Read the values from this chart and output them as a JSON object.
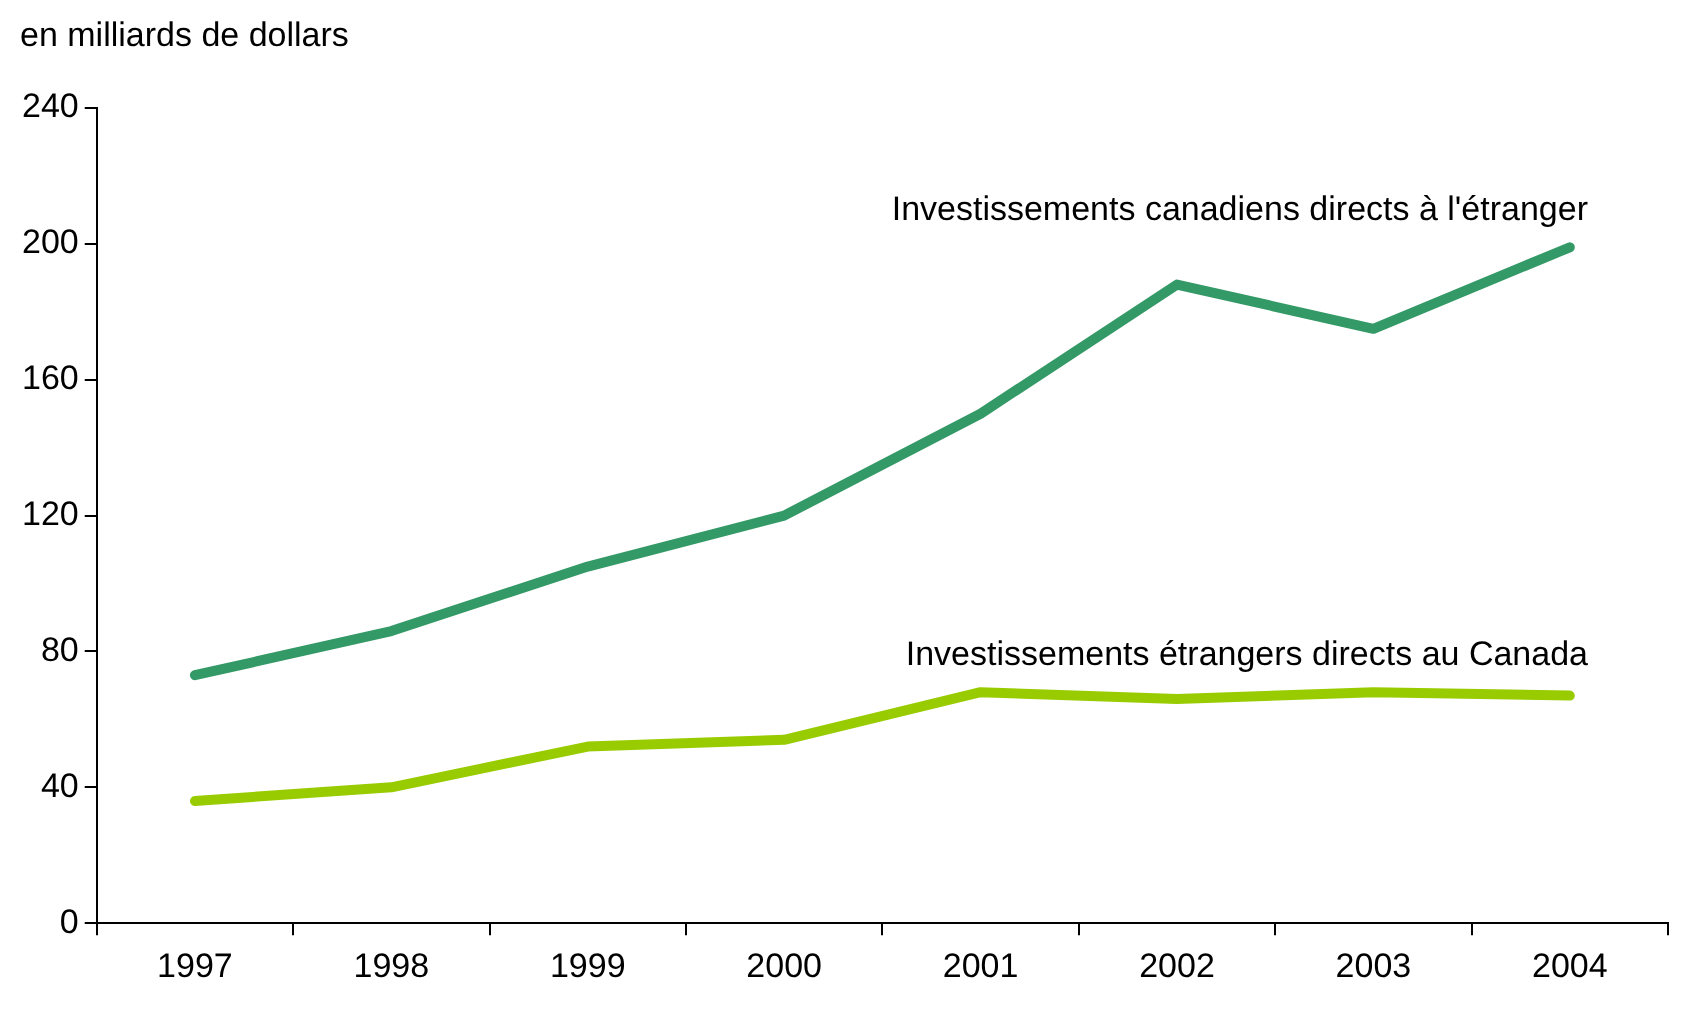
{
  "chart_data": {
    "type": "line",
    "ylabel": "en milliards de dollars",
    "categories": [
      "1997",
      "1998",
      "1999",
      "2000",
      "2001",
      "2002",
      "2003",
      "2004"
    ],
    "series": [
      {
        "name": "Investissements canadiens directs à l'étranger",
        "color": "#339966",
        "values": [
          73,
          86,
          105,
          120,
          150,
          188,
          175,
          199
        ]
      },
      {
        "name": "Investissements étrangers directs au Canada",
        "color": "#99cc00",
        "values": [
          36,
          40,
          52,
          54,
          68,
          66,
          68,
          67
        ]
      }
    ],
    "ylim": [
      0,
      240
    ],
    "yticks": [
      0,
      40,
      80,
      120,
      160,
      200,
      240
    ],
    "grid": false,
    "legend": false,
    "marker": "none",
    "line_style": "solid"
  }
}
